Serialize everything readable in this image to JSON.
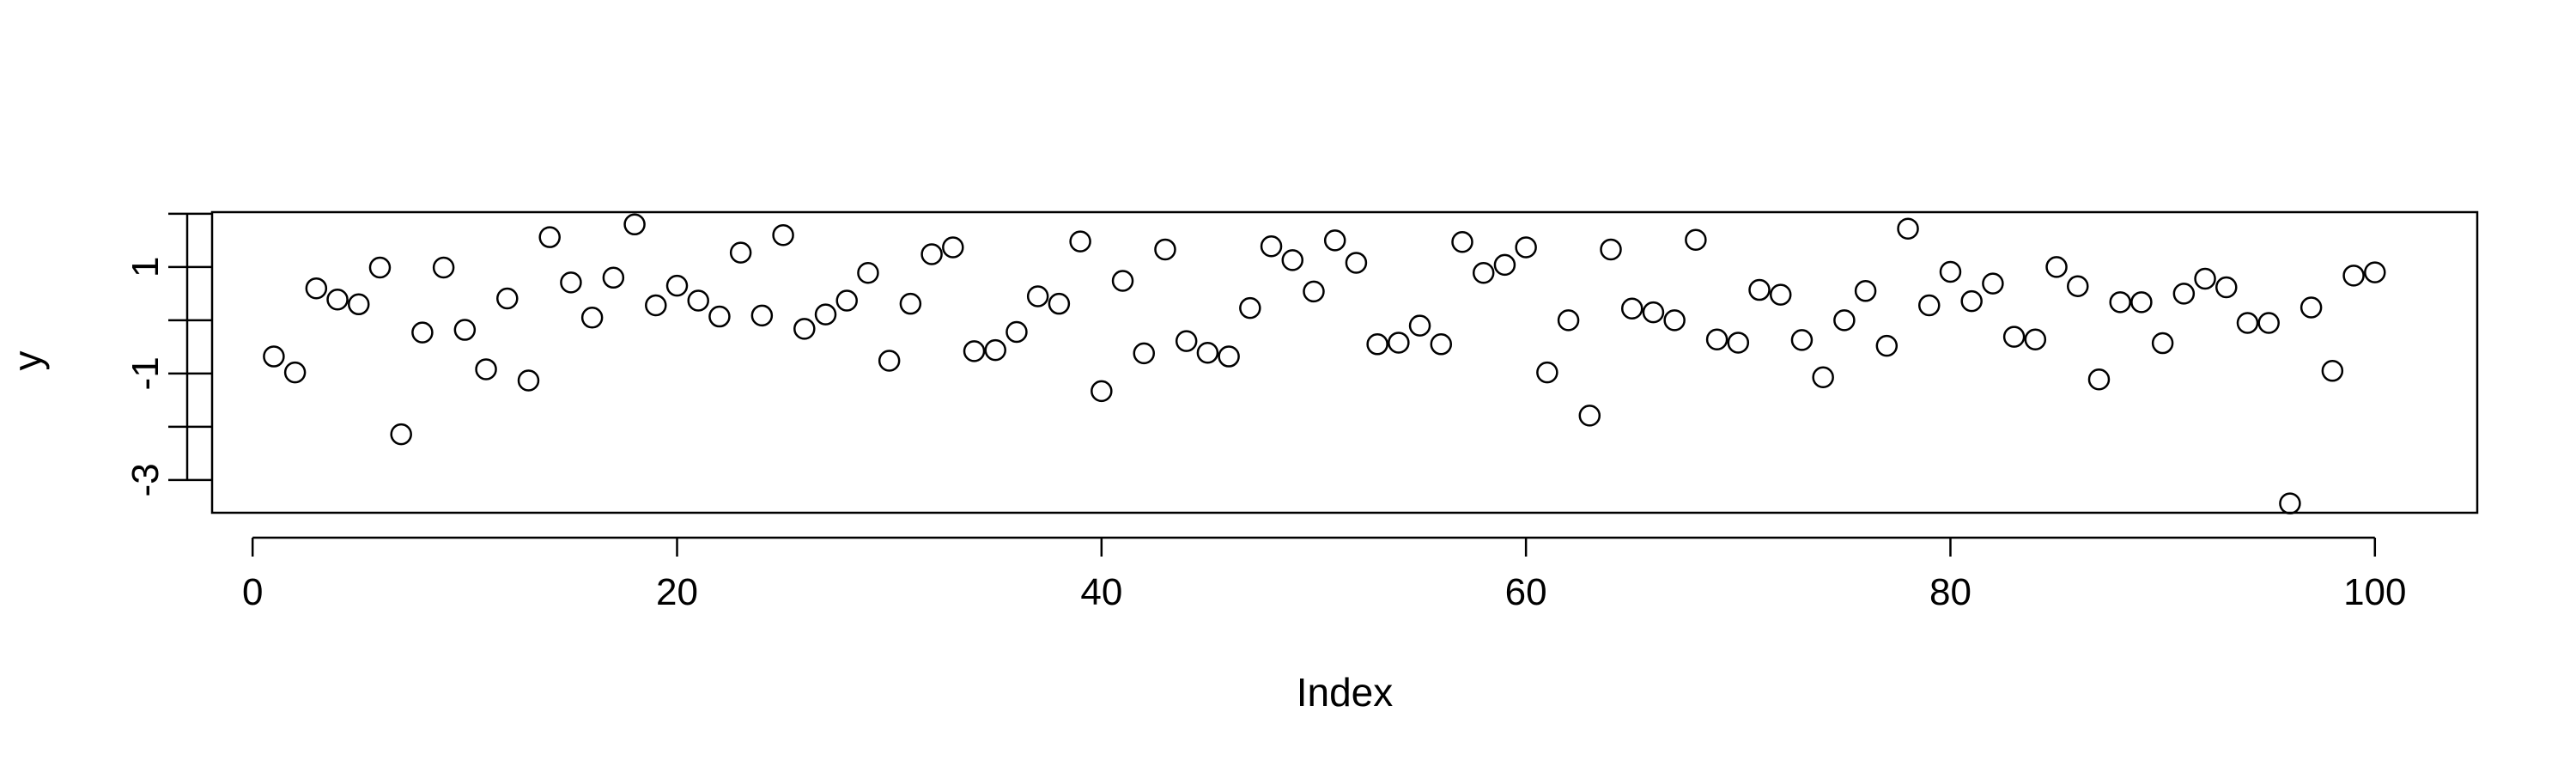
{
  "chart_data": {
    "type": "scatter",
    "title": "",
    "xlabel": "Index",
    "ylabel": "y",
    "xlim": [
      1,
      100
    ],
    "ylim": [
      -3.6,
      2.0
    ],
    "xticks": [
      "0",
      "20",
      "40",
      "60",
      "80",
      "100"
    ],
    "yticks": [
      "-3",
      "-1",
      "1"
    ],
    "grid": false,
    "legend": "none",
    "series": [
      {
        "point_color": "#000000",
        "x": [
          1,
          2,
          3,
          4,
          5,
          6,
          7,
          8,
          9,
          10,
          11,
          12,
          13,
          14,
          15,
          16,
          17,
          18,
          19,
          20,
          21,
          22,
          23,
          24,
          25,
          26,
          27,
          28,
          29,
          30,
          31,
          32,
          33,
          34,
          35,
          36,
          37,
          38,
          39,
          40,
          41,
          42,
          43,
          44,
          45,
          46,
          47,
          48,
          49,
          50,
          51,
          52,
          53,
          54,
          55,
          56,
          57,
          58,
          59,
          60,
          61,
          62,
          63,
          64,
          65,
          66,
          67,
          68,
          69,
          70,
          71,
          72,
          73,
          74,
          75,
          76,
          77,
          78,
          79,
          80,
          81,
          82,
          83,
          84,
          85,
          86,
          87,
          88,
          89,
          90,
          91,
          92,
          93,
          94,
          95,
          96,
          97,
          98,
          99,
          100
        ],
        "y": [
          -0.68,
          -0.98,
          0.6,
          0.39,
          0.3,
          0.99,
          -2.14,
          -0.23,
          0.99,
          -0.18,
          -0.92,
          0.41,
          -1.13,
          1.56,
          0.71,
          0.05,
          0.8,
          1.8,
          0.28,
          0.65,
          0.37,
          0.07,
          1.27,
          0.09,
          1.6,
          -0.16,
          0.11,
          0.37,
          0.89,
          -0.76,
          0.31,
          1.24,
          1.37,
          -0.58,
          -0.56,
          -0.22,
          0.45,
          0.31,
          1.48,
          -1.33,
          0.74,
          -0.62,
          1.33,
          -0.39,
          -0.61,
          -0.68,
          0.23,
          1.39,
          1.13,
          0.54,
          1.5,
          1.08,
          -0.45,
          -0.42,
          -0.1,
          -0.45,
          1.47,
          0.89,
          1.04,
          1.37,
          -0.98,
          0.0,
          -1.79,
          1.33,
          0.22,
          0.15,
          0.0,
          1.51,
          -0.36,
          -0.42,
          0.57,
          0.48,
          -0.37,
          -1.07,
          0.0,
          0.55,
          -0.48,
          1.72,
          0.28,
          0.91,
          0.36,
          0.69,
          -0.31,
          -0.36,
          1.0,
          0.64,
          -1.11,
          0.34,
          0.34,
          -0.43,
          0.5,
          0.78,
          0.62,
          -0.05,
          -0.05,
          -3.44,
          0.24,
          -0.95,
          0.84,
          0.9
        ]
      }
    ]
  }
}
